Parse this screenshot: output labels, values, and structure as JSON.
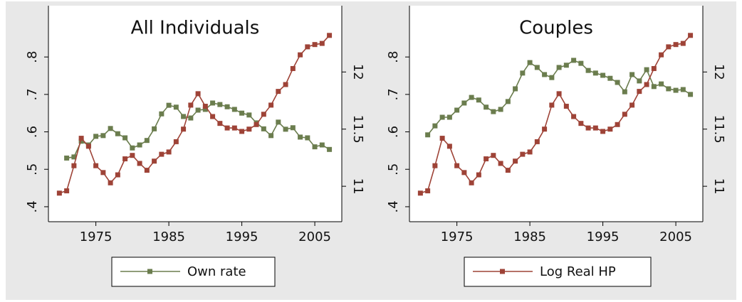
{
  "chart_data": [
    {
      "type": "line",
      "title": "All Individuals",
      "x": [
        1970,
        1971,
        1972,
        1973,
        1974,
        1975,
        1976,
        1977,
        1978,
        1979,
        1980,
        1981,
        1982,
        1983,
        1984,
        1985,
        1986,
        1987,
        1988,
        1989,
        1990,
        1991,
        1992,
        1993,
        1994,
        1995,
        1996,
        1997,
        1998,
        1999,
        2000,
        2001,
        2002,
        2003,
        2004,
        2005,
        2006,
        2007
      ],
      "series": [
        {
          "name": "Own rate",
          "color": "#6b7d4e",
          "axis": "y",
          "values": [
            null,
            0.53,
            0.533,
            0.575,
            0.565,
            0.588,
            0.59,
            0.609,
            0.595,
            0.584,
            0.557,
            0.565,
            0.577,
            0.608,
            0.648,
            0.671,
            0.666,
            0.641,
            0.637,
            0.658,
            0.66,
            0.677,
            0.673,
            0.667,
            0.66,
            0.65,
            0.645,
            0.624,
            0.608,
            0.59,
            0.626,
            0.607,
            0.611,
            0.586,
            0.584,
            0.56,
            0.565,
            0.553
          ]
        },
        {
          "name": "Log Real HP",
          "color": "#9e4337",
          "axis": "y2",
          "values": [
            10.94,
            10.96,
            11.18,
            11.42,
            11.35,
            11.18,
            11.12,
            11.03,
            11.1,
            11.24,
            11.27,
            11.2,
            11.14,
            11.22,
            11.28,
            11.3,
            11.39,
            11.5,
            11.71,
            11.81,
            11.7,
            11.61,
            11.55,
            11.51,
            11.51,
            11.48,
            11.5,
            11.54,
            11.63,
            11.71,
            11.83,
            11.89,
            12.03,
            12.15,
            12.22,
            12.24,
            12.25,
            12.32
          ]
        }
      ],
      "xlim": [
        1968.5,
        2008.7
      ],
      "xticks": [
        1975,
        1985,
        1995,
        2005
      ],
      "ylim": [
        0.36,
        0.937
      ],
      "yticks": [
        {
          "value": 0.4,
          "label": ".4"
        },
        {
          "value": 0.5,
          "label": ".5"
        },
        {
          "value": 0.6,
          "label": ".6"
        },
        {
          "value": 0.7,
          "label": ".7"
        },
        {
          "value": 0.8,
          "label": ".8"
        }
      ],
      "y2lim": [
        10.69,
        12.58
      ],
      "y2ticks": [
        11,
        11.5,
        12
      ]
    },
    {
      "type": "line",
      "title": "Couples",
      "x": [
        1970,
        1971,
        1972,
        1973,
        1974,
        1975,
        1976,
        1977,
        1978,
        1979,
        1980,
        1981,
        1982,
        1983,
        1984,
        1985,
        1986,
        1987,
        1988,
        1989,
        1990,
        1991,
        1992,
        1993,
        1994,
        1995,
        1996,
        1997,
        1998,
        1999,
        2000,
        2001,
        2002,
        2003,
        2004,
        2005,
        2006,
        2007
      ],
      "series": [
        {
          "name": "Own rate",
          "color": "#6b7d4e",
          "axis": "y",
          "values": [
            null,
            0.592,
            0.616,
            0.639,
            0.639,
            0.658,
            0.677,
            0.692,
            0.685,
            0.666,
            0.654,
            0.66,
            0.681,
            0.715,
            0.757,
            0.785,
            0.772,
            0.753,
            0.745,
            0.772,
            0.778,
            0.791,
            0.783,
            0.764,
            0.757,
            0.751,
            0.743,
            0.732,
            0.707,
            0.753,
            0.736,
            0.766,
            0.721,
            0.728,
            0.715,
            0.711,
            0.713,
            0.7
          ]
        },
        {
          "name": "Log Real HP",
          "color": "#9e4337",
          "axis": "y2",
          "values": [
            10.94,
            10.96,
            11.18,
            11.42,
            11.35,
            11.18,
            11.12,
            11.03,
            11.1,
            11.24,
            11.27,
            11.2,
            11.14,
            11.22,
            11.28,
            11.3,
            11.39,
            11.5,
            11.71,
            11.81,
            11.7,
            11.61,
            11.55,
            11.51,
            11.51,
            11.48,
            11.5,
            11.54,
            11.63,
            11.71,
            11.83,
            11.89,
            12.03,
            12.15,
            12.22,
            12.24,
            12.25,
            12.32
          ]
        }
      ],
      "xlim": [
        1968.5,
        2008.7
      ],
      "xticks": [
        1975,
        1985,
        1995,
        2005
      ],
      "ylim": [
        0.36,
        0.937
      ],
      "yticks": [
        {
          "value": 0.4,
          "label": ".4"
        },
        {
          "value": 0.5,
          "label": ".5"
        },
        {
          "value": 0.6,
          "label": ".6"
        },
        {
          "value": 0.7,
          "label": ".7"
        },
        {
          "value": 0.8,
          "label": ".8"
        }
      ],
      "y2lim": [
        10.69,
        12.58
      ],
      "y2ticks": [
        11,
        11.5,
        12
      ]
    }
  ]
}
